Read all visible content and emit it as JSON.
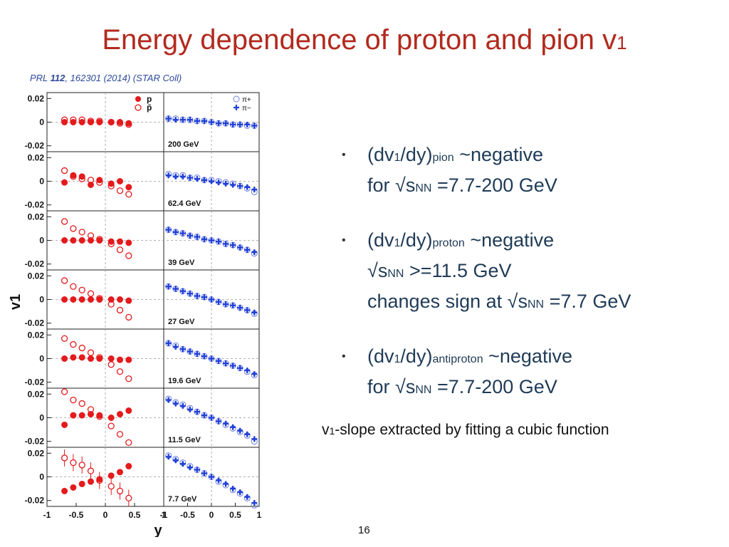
{
  "slide": {
    "title_main": "Energy dependence of proton and pion v",
    "title_sub": "1",
    "citation_prefix": "PRL ",
    "citation_volume": "112",
    "citation_rest": ", 162301 (2014) (STAR Coll)",
    "page_number": "16"
  },
  "bullets": [
    {
      "a": "(dv",
      "b": "1",
      "c": "/dy)",
      "d": "pion",
      "e": " ~negative",
      "l2a": "for √s",
      "l2b": "NN",
      "l2c": " =7.7-200 GeV"
    },
    {
      "a": "(dv",
      "b": "1",
      "c": "/dy)",
      "d": "proton",
      "e": " ~negative",
      "l2a": "√s",
      "l2b": "NN",
      "l2c": " >=11.5 GeV",
      "l3a": "changes sign at √s",
      "l3b": "NN",
      "l3c": " =7.7 GeV"
    },
    {
      "a": "(dv",
      "b": "1",
      "c": "/dy)",
      "d": "antiproton",
      "e": " ~negative",
      "l2a": "for √s",
      "l2b": "NN",
      "l2c": " =7.7-200 GeV"
    }
  ],
  "note": {
    "a": "v",
    "b": "1",
    "c": "-slope extracted by fitting a cubic function"
  },
  "colors": {
    "title": "#b22a1e",
    "text": "#1f3b57",
    "proton": "#e41a1c",
    "pion": "#1f3fd6"
  },
  "chart_data": {
    "type": "scatter",
    "title": "",
    "xlabel": "y",
    "ylabel": "v1",
    "xlim": [
      -1,
      1
    ],
    "ylim": [
      -0.025,
      0.025
    ],
    "y_ticks": [
      "0.02",
      "0",
      "-0.02"
    ],
    "x_ticks": [
      "-1",
      "-0.5",
      "0",
      "0.5",
      "1"
    ],
    "legend_left": [
      {
        "symbol": "filled-circle",
        "label": "p"
      },
      {
        "symbol": "open-circle",
        "label": "p̄"
      }
    ],
    "legend_right": [
      {
        "symbol": "open-cross",
        "label": "π+"
      },
      {
        "symbol": "filled-cross",
        "label": "π−"
      }
    ],
    "energies": [
      "200 GeV",
      "62.4 GeV",
      "39 GeV",
      "27 GeV",
      "19.6 GeV",
      "11.5 GeV",
      "7.7 GeV"
    ],
    "panels": [
      {
        "energy": "200 GeV",
        "proton": {
          "x": [
            -0.7,
            -0.55,
            -0.4,
            -0.25,
            -0.1,
            0.1,
            0.25,
            0.4
          ],
          "y": [
            0.0,
            0.0,
            0.0,
            0.0,
            0.0,
            0.0,
            0.0,
            -0.001
          ]
        },
        "antiproton": {
          "x": [
            -0.7,
            -0.55,
            -0.4,
            -0.25,
            -0.1,
            0.1,
            0.25,
            0.4
          ],
          "y": [
            0.002,
            0.002,
            0.002,
            0.001,
            0.001,
            0.0,
            -0.001,
            -0.002
          ]
        },
        "pion_plus": {
          "x": [
            -0.9,
            -0.75,
            -0.6,
            -0.45,
            -0.3,
            -0.15,
            0.0,
            0.15,
            0.3,
            0.45,
            0.6,
            0.75,
            0.9
          ],
          "y": [
            0.003,
            0.003,
            0.002,
            0.002,
            0.001,
            0.001,
            0.0,
            -0.001,
            -0.001,
            -0.002,
            -0.002,
            -0.003,
            -0.003
          ]
        },
        "pion_minus": {
          "x": [
            -0.9,
            -0.75,
            -0.6,
            -0.45,
            -0.3,
            -0.15,
            0.0,
            0.15,
            0.3,
            0.45,
            0.6,
            0.75,
            0.9
          ],
          "y": [
            0.003,
            0.002,
            0.002,
            0.002,
            0.001,
            0.001,
            0.0,
            -0.001,
            -0.001,
            -0.002,
            -0.002,
            -0.002,
            -0.003
          ]
        }
      },
      {
        "energy": "62.4 GeV",
        "proton": {
          "x": [
            -0.7,
            -0.55,
            -0.4,
            -0.25,
            -0.1,
            0.1,
            0.25,
            0.4
          ],
          "y": [
            -0.001,
            0.005,
            0.004,
            -0.003,
            0.001,
            -0.002,
            0.0,
            -0.005
          ]
        },
        "antiproton": {
          "x": [
            -0.7,
            -0.55,
            -0.4,
            -0.25,
            -0.1,
            0.1,
            0.25,
            0.4
          ],
          "y": [
            0.009,
            0.004,
            0.002,
            0.001,
            -0.001,
            -0.004,
            -0.008,
            -0.011
          ]
        },
        "pion_plus": {
          "x": [
            -0.9,
            -0.75,
            -0.6,
            -0.45,
            -0.3,
            -0.15,
            0.0,
            0.15,
            0.3,
            0.45,
            0.6,
            0.75,
            0.9
          ],
          "y": [
            0.006,
            0.005,
            0.005,
            0.003,
            0.003,
            0.001,
            0.001,
            0.0,
            -0.001,
            -0.002,
            -0.004,
            -0.006,
            -0.009
          ]
        },
        "pion_minus": {
          "x": [
            -0.9,
            -0.75,
            -0.6,
            -0.45,
            -0.3,
            -0.15,
            0.0,
            0.15,
            0.3,
            0.45,
            0.6,
            0.75,
            0.9
          ],
          "y": [
            0.005,
            0.004,
            0.004,
            0.003,
            0.002,
            0.001,
            0.0,
            -0.001,
            -0.002,
            -0.003,
            -0.004,
            -0.005,
            -0.007
          ]
        }
      },
      {
        "energy": "39 GeV",
        "proton": {
          "x": [
            -0.7,
            -0.55,
            -0.4,
            -0.25,
            -0.1,
            0.1,
            0.25,
            0.4
          ],
          "y": [
            0.0,
            0.0,
            0.0,
            0.0,
            0.0,
            -0.001,
            -0.001,
            -0.002
          ]
        },
        "antiproton": {
          "x": [
            -0.7,
            -0.55,
            -0.4,
            -0.25,
            -0.1,
            0.1,
            0.25,
            0.4
          ],
          "y": [
            0.016,
            0.01,
            0.007,
            0.004,
            0.001,
            -0.003,
            -0.008,
            -0.013
          ]
        },
        "pion_plus": {
          "x": [
            -0.9,
            -0.75,
            -0.6,
            -0.45,
            -0.3,
            -0.15,
            0.0,
            0.15,
            0.3,
            0.45,
            0.6,
            0.75,
            0.9
          ],
          "y": [
            0.009,
            0.007,
            0.006,
            0.004,
            0.003,
            0.001,
            0.0,
            -0.001,
            -0.003,
            -0.004,
            -0.006,
            -0.008,
            -0.011
          ]
        },
        "pion_minus": {
          "x": [
            -0.9,
            -0.75,
            -0.6,
            -0.45,
            -0.3,
            -0.15,
            0.0,
            0.15,
            0.3,
            0.45,
            0.6,
            0.75,
            0.9
          ],
          "y": [
            0.009,
            0.007,
            0.006,
            0.004,
            0.003,
            0.001,
            0.0,
            -0.001,
            -0.003,
            -0.004,
            -0.006,
            -0.008,
            -0.01
          ]
        }
      },
      {
        "energy": "27 GeV",
        "proton": {
          "x": [
            -0.7,
            -0.55,
            -0.4,
            -0.25,
            -0.1,
            0.1,
            0.25,
            0.4
          ],
          "y": [
            0.0,
            0.0,
            0.0,
            0.0,
            0.0,
            0.0,
            0.0,
            -0.001
          ]
        },
        "antiproton": {
          "x": [
            -0.7,
            -0.55,
            -0.4,
            -0.25,
            -0.1,
            0.1,
            0.25,
            0.4
          ],
          "y": [
            0.016,
            0.011,
            0.008,
            0.005,
            0.001,
            -0.004,
            -0.009,
            -0.015
          ]
        },
        "pion_plus": {
          "x": [
            -0.9,
            -0.75,
            -0.6,
            -0.45,
            -0.3,
            -0.15,
            0.0,
            0.15,
            0.3,
            0.45,
            0.6,
            0.75,
            0.9
          ],
          "y": [
            0.011,
            0.009,
            0.007,
            0.005,
            0.003,
            0.002,
            0.0,
            -0.002,
            -0.004,
            -0.005,
            -0.007,
            -0.009,
            -0.012
          ]
        },
        "pion_minus": {
          "x": [
            -0.9,
            -0.75,
            -0.6,
            -0.45,
            -0.3,
            -0.15,
            0.0,
            0.15,
            0.3,
            0.45,
            0.6,
            0.75,
            0.9
          ],
          "y": [
            0.011,
            0.009,
            0.007,
            0.005,
            0.003,
            0.002,
            0.0,
            -0.002,
            -0.004,
            -0.005,
            -0.007,
            -0.009,
            -0.011
          ]
        }
      },
      {
        "energy": "19.6 GeV",
        "proton": {
          "x": [
            -0.7,
            -0.55,
            -0.4,
            -0.25,
            -0.1,
            0.1,
            0.25,
            0.4
          ],
          "y": [
            0.0,
            0.001,
            0.001,
            0.0,
            0.0,
            0.0,
            -0.001,
            -0.001
          ]
        },
        "antiproton": {
          "x": [
            -0.7,
            -0.55,
            -0.4,
            -0.25,
            -0.1,
            0.1,
            0.25,
            0.4
          ],
          "y": [
            0.017,
            0.012,
            0.009,
            0.005,
            0.001,
            -0.005,
            -0.011,
            -0.017
          ]
        },
        "pion_plus": {
          "x": [
            -0.9,
            -0.75,
            -0.6,
            -0.45,
            -0.3,
            -0.15,
            0.0,
            0.15,
            0.3,
            0.45,
            0.6,
            0.75,
            0.9
          ],
          "y": [
            0.013,
            0.011,
            0.008,
            0.006,
            0.004,
            0.002,
            0.0,
            -0.002,
            -0.004,
            -0.006,
            -0.008,
            -0.011,
            -0.014
          ]
        },
        "pion_minus": {
          "x": [
            -0.9,
            -0.75,
            -0.6,
            -0.45,
            -0.3,
            -0.15,
            0.0,
            0.15,
            0.3,
            0.45,
            0.6,
            0.75,
            0.9
          ],
          "y": [
            0.013,
            0.01,
            0.008,
            0.006,
            0.004,
            0.002,
            0.0,
            -0.002,
            -0.004,
            -0.006,
            -0.008,
            -0.01,
            -0.013
          ]
        }
      },
      {
        "energy": "11.5 GeV",
        "proton": {
          "x": [
            -0.7,
            -0.55,
            -0.4,
            -0.25,
            -0.1,
            0.1,
            0.25,
            0.4
          ],
          "y": [
            -0.006,
            0.002,
            0.002,
            0.003,
            0.002,
            0.0,
            0.003,
            0.006
          ]
        },
        "antiproton": {
          "x": [
            -0.7,
            -0.55,
            -0.4,
            -0.25,
            -0.1,
            0.1,
            0.25,
            0.4
          ],
          "y": [
            0.022,
            0.015,
            0.012,
            0.007,
            0.001,
            -0.007,
            -0.014,
            -0.021
          ]
        },
        "pion_plus": {
          "x": [
            -0.9,
            -0.75,
            -0.6,
            -0.45,
            -0.3,
            -0.15,
            0.0,
            0.15,
            0.3,
            0.45,
            0.6,
            0.75,
            0.9
          ],
          "y": [
            0.016,
            0.013,
            0.011,
            0.008,
            0.005,
            0.002,
            0.0,
            -0.003,
            -0.006,
            -0.009,
            -0.012,
            -0.015,
            -0.02
          ]
        },
        "pion_minus": {
          "x": [
            -0.9,
            -0.75,
            -0.6,
            -0.45,
            -0.3,
            -0.15,
            0.0,
            0.15,
            0.3,
            0.45,
            0.6,
            0.75,
            0.9
          ],
          "y": [
            0.015,
            0.012,
            0.01,
            0.007,
            0.005,
            0.002,
            0.0,
            -0.003,
            -0.005,
            -0.008,
            -0.011,
            -0.014,
            -0.018
          ]
        }
      },
      {
        "energy": "7.7 GeV",
        "proton": {
          "x": [
            -0.7,
            -0.55,
            -0.4,
            -0.25,
            -0.1,
            0.1,
            0.25,
            0.4
          ],
          "y": [
            -0.012,
            -0.009,
            -0.006,
            -0.004,
            -0.002,
            0.001,
            0.004,
            0.009
          ]
        },
        "antiproton": {
          "x": [
            -0.7,
            -0.55,
            -0.4,
            -0.25,
            -0.1,
            0.1,
            0.25,
            0.4
          ],
          "y": [
            0.016,
            0.012,
            0.01,
            0.005,
            -0.003,
            -0.008,
            -0.012,
            -0.018
          ]
        },
        "pion_plus": {
          "x": [
            -0.9,
            -0.75,
            -0.6,
            -0.45,
            -0.3,
            -0.15,
            0.0,
            0.15,
            0.3,
            0.45,
            0.6,
            0.75,
            0.9
          ],
          "y": [
            0.018,
            0.015,
            0.012,
            0.009,
            0.006,
            0.003,
            0.0,
            -0.004,
            -0.007,
            -0.011,
            -0.014,
            -0.018,
            -0.024
          ]
        },
        "pion_minus": {
          "x": [
            -0.9,
            -0.75,
            -0.6,
            -0.45,
            -0.3,
            -0.15,
            0.0,
            0.15,
            0.3,
            0.45,
            0.6,
            0.75,
            0.9
          ],
          "y": [
            0.017,
            0.014,
            0.011,
            0.008,
            0.006,
            0.003,
            0.0,
            -0.003,
            -0.006,
            -0.01,
            -0.013,
            -0.017,
            -0.022
          ]
        }
      }
    ]
  }
}
